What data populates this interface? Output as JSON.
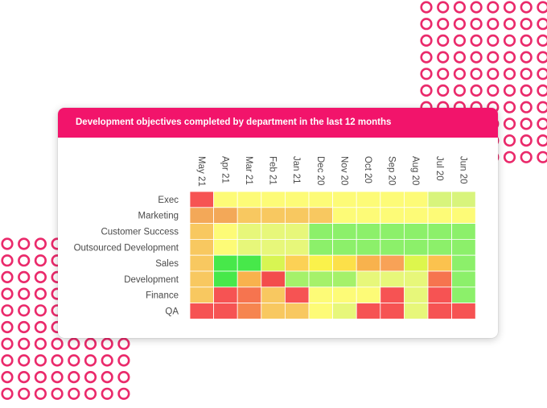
{
  "colors": {
    "accent": "#f2146b",
    "decor_ring": "#ea2a6b",
    "header_text": "#ffffff",
    "label_text": "#4a4a4a"
  },
  "chart_data": {
    "type": "heatmap",
    "title": "Development objectives completed by department in the last 12 months",
    "columns": [
      "May 21",
      "Apr 21",
      "Mar 21",
      "Feb 21",
      "Jan 21",
      "Dec 20",
      "Nov 20",
      "Oct 20",
      "Sep 20",
      "Aug 20",
      "Jul 20",
      "Jun 20"
    ],
    "rows": [
      "Exec",
      "Marketing",
      "Customer Success",
      "Outsourced Development",
      "Sales",
      "Development",
      "Finance",
      "QA"
    ],
    "cell_colors": [
      [
        "#f65353",
        "#fdfb77",
        "#fdfb77",
        "#fdfb77",
        "#fdfb77",
        "#fdfb77",
        "#fdfb77",
        "#fdfb77",
        "#fdfb77",
        "#fdfb77",
        "#d8f47c",
        "#d8f47c"
      ],
      [
        "#f3a858",
        "#f3a858",
        "#f8c860",
        "#f8c860",
        "#f8c860",
        "#f8c860",
        "#fdfb77",
        "#fdfb77",
        "#fdfb77",
        "#fdfb77",
        "#fdfb77",
        "#fdfb77"
      ],
      [
        "#f8c860",
        "#fdfb77",
        "#e7f77a",
        "#e7f77a",
        "#e7f77a",
        "#8cf06a",
        "#8cf06a",
        "#8cf06a",
        "#8cf06a",
        "#8cf06a",
        "#8cf06a",
        "#8cf06a"
      ],
      [
        "#f8c860",
        "#fdfb77",
        "#e7f77a",
        "#e7f77a",
        "#e7f77a",
        "#8cf06a",
        "#8cf06a",
        "#8cf06a",
        "#8cf06a",
        "#8cf06a",
        "#8cf06a",
        "#8cf06a"
      ],
      [
        "#f8c860",
        "#47e84a",
        "#47e84a",
        "#d8f552",
        "#fcd155",
        "#faf24b",
        "#fce049",
        "#f8b24d",
        "#f8a257",
        "#ddf64d",
        "#fbc24e",
        "#8cf06a"
      ],
      [
        "#f8c860",
        "#47e84a",
        "#f8b24d",
        "#f34c4c",
        "#a5f16a",
        "#a5f16a",
        "#a5f16a",
        "#e7f77a",
        "#e7f77a",
        "#e7f77a",
        "#f6744f",
        "#8cf06a"
      ],
      [
        "#f8c860",
        "#f65353",
        "#f6744f",
        "#f8c860",
        "#f65353",
        "#fdfb77",
        "#fdfb77",
        "#fdfb77",
        "#f65353",
        "#e7f77a",
        "#f65353",
        "#8cf06a"
      ],
      [
        "#f65353",
        "#f65353",
        "#f6854f",
        "#f8c860",
        "#f8c860",
        "#fdfb77",
        "#e7f77a",
        "#f65353",
        "#f65353",
        "#e7f77a",
        "#f65353",
        "#f65353"
      ]
    ],
    "grid": false,
    "legend": "none"
  }
}
